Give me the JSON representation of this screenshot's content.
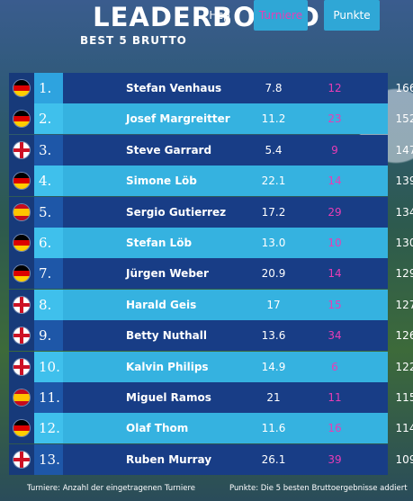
{
  "header": {
    "title": "LEADERBOARD",
    "subtitle": "BEST 5 BRUTTO"
  },
  "columns": {
    "hcp": "Hcp",
    "turniere": "Turniere",
    "punkte": "Punkte"
  },
  "rows": [
    {
      "rank": "1.",
      "flag": "germany-flag-icon",
      "name": "Stefan Venhaus",
      "hcp": "7.8",
      "turniere": "12",
      "punkte": "166"
    },
    {
      "rank": "2.",
      "flag": "germany-flag-icon",
      "name": "Josef Margreitter",
      "hcp": "11.2",
      "turniere": "23",
      "punkte": "152"
    },
    {
      "rank": "3.",
      "flag": "england-flag-icon",
      "name": "Steve Garrard",
      "hcp": "5.4",
      "turniere": "9",
      "punkte": "147"
    },
    {
      "rank": "4.",
      "flag": "germany-flag-icon",
      "name": "Simone Löb",
      "hcp": "22.1",
      "turniere": "14",
      "punkte": "139"
    },
    {
      "rank": "5.",
      "flag": "spain-flag-icon",
      "name": "Sergio Gutierrez",
      "hcp": "17.2",
      "turniere": "29",
      "punkte": "134"
    },
    {
      "rank": "6.",
      "flag": "germany-flag-icon",
      "name": "Stefan Löb",
      "hcp": "13.0",
      "turniere": "10",
      "punkte": "130"
    },
    {
      "rank": "7.",
      "flag": "germany-flag-icon",
      "name": "Jürgen Weber",
      "hcp": "20.9",
      "turniere": "14",
      "punkte": "129"
    },
    {
      "rank": "8.",
      "flag": "england-flag-icon",
      "name": "Harald Geis",
      "hcp": "17",
      "turniere": "15",
      "punkte": "127"
    },
    {
      "rank": "9.",
      "flag": "england-flag-icon",
      "name": "Betty Nuthall",
      "hcp": "13.6",
      "turniere": "34",
      "punkte": "126"
    },
    {
      "rank": "10.",
      "flag": "england-flag-icon",
      "name": "Kalvin Philips",
      "hcp": "14.9",
      "turniere": "6",
      "punkte": "122"
    },
    {
      "rank": "11.",
      "flag": "spain-flag-icon",
      "name": "Miguel Ramos",
      "hcp": "21",
      "turniere": "11",
      "punkte": "115"
    },
    {
      "rank": "12.",
      "flag": "germany-flag-icon",
      "name": "Olaf Thom",
      "hcp": "11.6",
      "turniere": "16",
      "punkte": "114"
    },
    {
      "rank": "13.",
      "flag": "england-flag-icon",
      "name": "Ruben Murray",
      "hcp": "26.1",
      "turniere": "39",
      "punkte": "109"
    }
  ],
  "footer": {
    "left_note": "Turniere: Anzahl der eingetragenen Turniere",
    "right_note": "Punkte: Die 5 besten Bruttoergebnisse addiert"
  },
  "colors": {
    "dark_row": "#183d86",
    "light_row": "#35b2e0",
    "turniere_text": "#e83db5",
    "header_pill": "#2fa7d6"
  }
}
